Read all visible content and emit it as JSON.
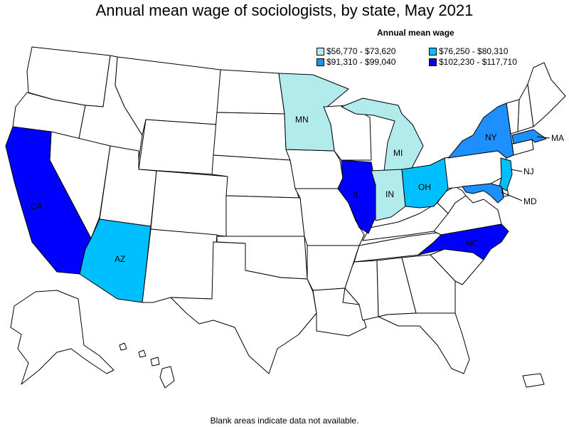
{
  "title": "Annual mean wage of sociologists, by state, May 2021",
  "legend": {
    "title": "Annual mean wage",
    "items": [
      {
        "label": "$56,770 - $73,620",
        "color": "#b2ebeb"
      },
      {
        "label": "$76,250 - $80,310",
        "color": "#00bfff"
      },
      {
        "label": "$91,310 - $99,040",
        "color": "#1e8fff"
      },
      {
        "label": "$102,230 - $117,710",
        "color": "#0000ff"
      }
    ]
  },
  "states": [
    {
      "abbr": "CA",
      "tier": 4
    },
    {
      "abbr": "AZ",
      "tier": 2
    },
    {
      "abbr": "MN",
      "tier": 1
    },
    {
      "abbr": "MI",
      "tier": 1
    },
    {
      "abbr": "IN",
      "tier": 1
    },
    {
      "abbr": "IL",
      "tier": 4
    },
    {
      "abbr": "OH",
      "tier": 2
    },
    {
      "abbr": "NY",
      "tier": 3
    },
    {
      "abbr": "MA",
      "tier": 3
    },
    {
      "abbr": "NJ",
      "tier": 2
    },
    {
      "abbr": "MD",
      "tier": 3
    },
    {
      "abbr": "NC",
      "tier": 4
    }
  ],
  "footnote": "Blank areas indicate data not available."
}
